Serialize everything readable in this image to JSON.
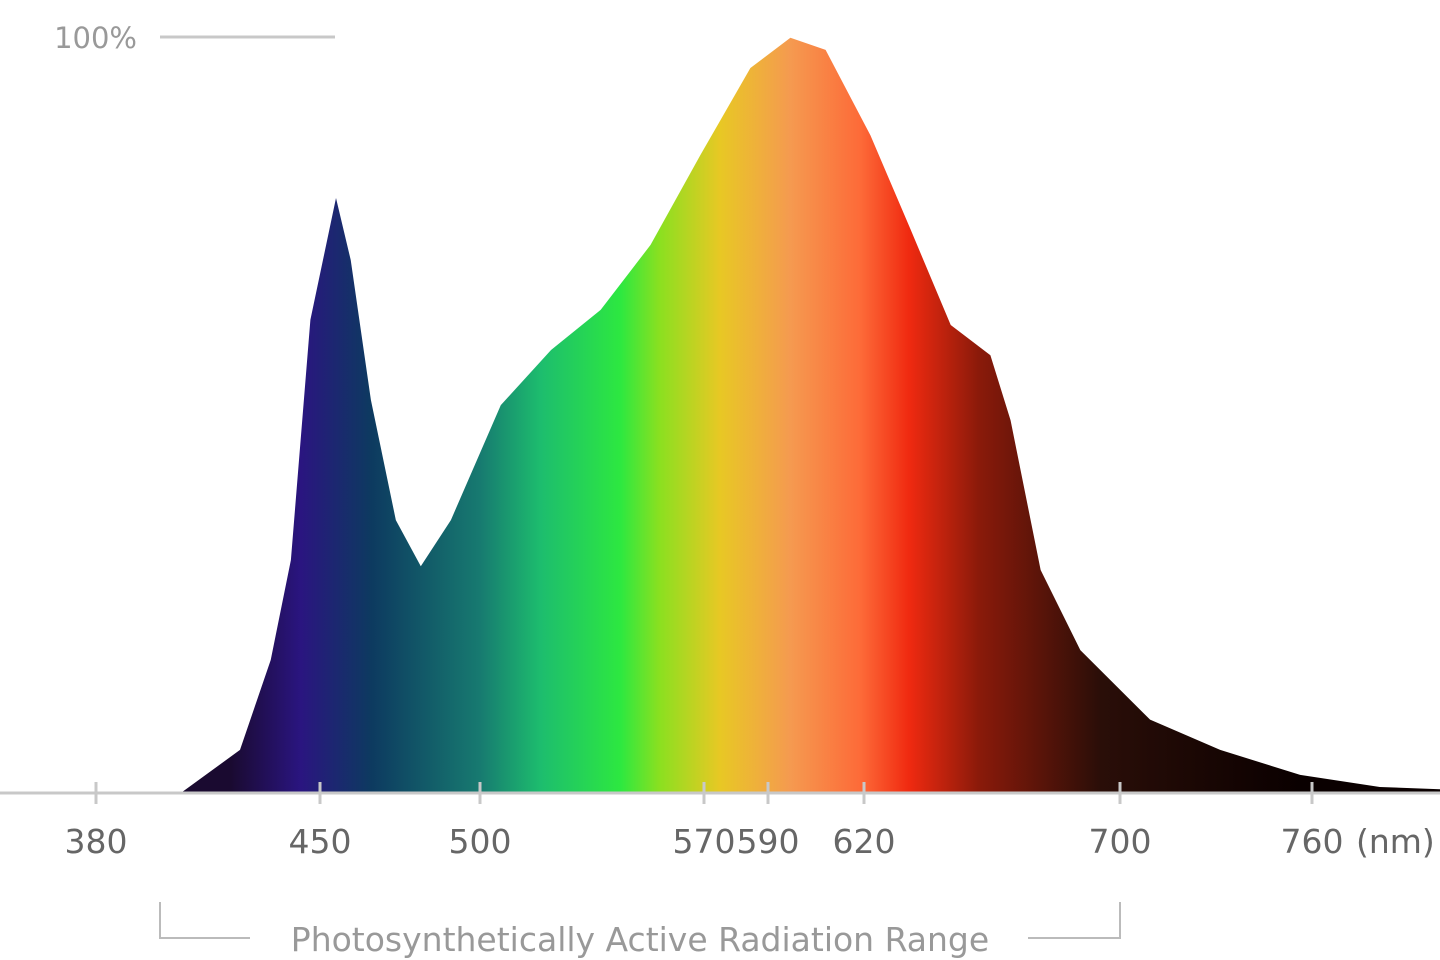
{
  "chart_data": {
    "type": "area",
    "x_label": "(nm)",
    "annotation": "Photosynthetically Active Radiation Range",
    "annotation_range": [
      400,
      700
    ],
    "xlim": [
      350,
      800
    ],
    "ylim": [
      0,
      100
    ],
    "xticks": [
      380,
      450,
      500,
      570,
      590,
      620,
      700,
      760
    ],
    "yticks": [
      {
        "value": 100,
        "label": "100%"
      }
    ],
    "gradient": [
      {
        "at": 422,
        "color": "#1a0a30"
      },
      {
        "at": 444,
        "color": "#2a1580"
      },
      {
        "at": 466,
        "color": "#0d3a60"
      },
      {
        "at": 500,
        "color": "#177a70"
      },
      {
        "at": 519,
        "color": "#1dbd6e"
      },
      {
        "at": 544,
        "color": "#2de840"
      },
      {
        "at": 556,
        "color": "#8ae020"
      },
      {
        "at": 575,
        "color": "#e8c824"
      },
      {
        "at": 597,
        "color": "#f59a50"
      },
      {
        "at": 619,
        "color": "#fd6a38"
      },
      {
        "at": 634,
        "color": "#f02a10"
      },
      {
        "at": 656,
        "color": "#8a1a0a"
      },
      {
        "at": 694,
        "color": "#2a0e08"
      },
      {
        "at": 756,
        "color": "#0a0000"
      }
    ],
    "series": [
      {
        "x": [
          406.5,
          425,
          434.6,
          440.9,
          447,
          455,
          459.6,
          465.9,
          473.7,
          481.5,
          490.9,
          506.5,
          522.2,
          537.7,
          553.3,
          568.9,
          584.5,
          597,
          608,
          622,
          634.6,
          647.1,
          659.5,
          665.8,
          675.2,
          687.6,
          709.4,
          731.3,
          756.3,
          781.2,
          800
        ],
        "values": [
          0,
          5.7,
          17.6,
          30.8,
          62.6,
          78.7,
          70.5,
          52,
          36.1,
          30,
          36.1,
          51.3,
          58.6,
          63.9,
          72.5,
          84.4,
          95.9,
          99.9,
          98.3,
          87,
          74.5,
          61.9,
          57.9,
          49.3,
          29.5,
          18.9,
          9.7,
          5.7,
          2.4,
          0.8,
          0.5
        ]
      }
    ]
  }
}
